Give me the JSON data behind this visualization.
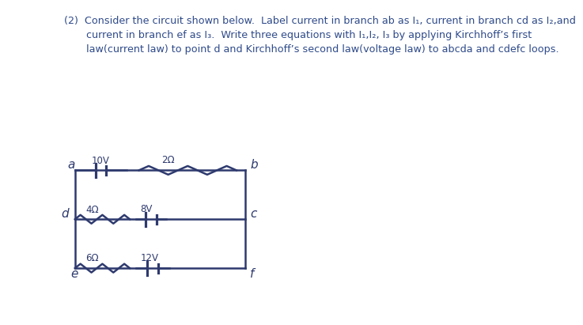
{
  "title_text": "(2)  Consider the circuit shown below.  Label current in branch ab as I₁, current in branch cd as I₂,and\n       current in branch ef as I₃.  Write three equations with I₁,I₂, I₃ by applying Kirchhoff’s first\n       law(current law) to point d and Kirchhoff’s second law(voltage law) to abcda and cdefc loops.",
  "text_color": "#2e4a8a",
  "bg_color": "#ffffff",
  "photo_bg": "#d8d4cc",
  "circuit_color": "#2e3a6e",
  "node_labels": [
    "a",
    "b",
    "c",
    "d",
    "e",
    "f"
  ],
  "component_labels": [
    "10V",
    "2Ω",
    "4Ω",
    "8V",
    "6Ω",
    "12V"
  ],
  "font_family": "DejaVu Sans"
}
